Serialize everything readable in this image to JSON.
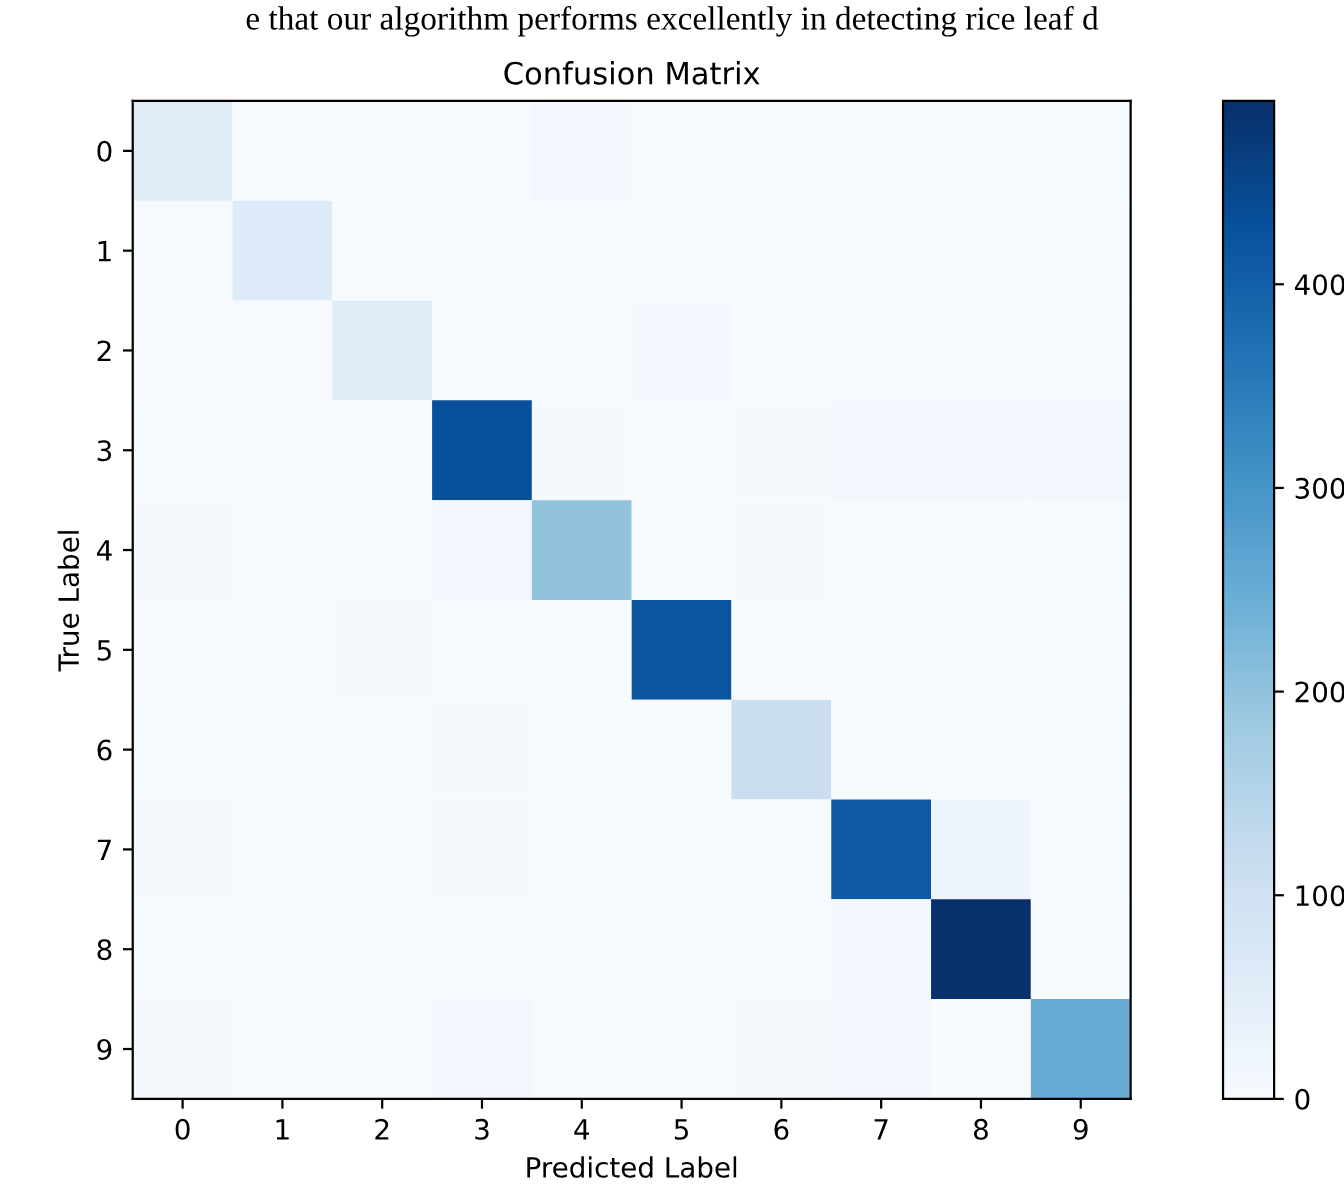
{
  "chart_data": {
    "type": "heatmap",
    "title": "Confusion Matrix",
    "xlabel": "Predicted Label",
    "ylabel": "True Label",
    "annotations": [
      "e that our algorithm performs excellently in detecting rice leaf d"
    ],
    "categories": [
      "0",
      "1",
      "2",
      "3",
      "4",
      "5",
      "6",
      "7",
      "8",
      "9"
    ],
    "y_categories": [
      "0",
      "1",
      "2",
      "3",
      "4",
      "5",
      "6",
      "7",
      "8",
      "9"
    ],
    "cells": [
      [
        60,
        3,
        2,
        5,
        12,
        4,
        3,
        4,
        5,
        4
      ],
      [
        2,
        65,
        2,
        3,
        5,
        3,
        2,
        4,
        2,
        3
      ],
      [
        2,
        2,
        60,
        3,
        3,
        10,
        2,
        3,
        3,
        3
      ],
      [
        4,
        2,
        2,
        430,
        8,
        3,
        6,
        10,
        10,
        12
      ],
      [
        6,
        4,
        3,
        10,
        200,
        3,
        7,
        5,
        5,
        5
      ],
      [
        3,
        3,
        6,
        4,
        3,
        420,
        3,
        4,
        3,
        3
      ],
      [
        4,
        4,
        2,
        7,
        5,
        3,
        110,
        5,
        5,
        4
      ],
      [
        6,
        4,
        2,
        8,
        4,
        3,
        3,
        410,
        25,
        5
      ],
      [
        4,
        4,
        4,
        2,
        4,
        3,
        3,
        10,
        490,
        3
      ],
      [
        8,
        2,
        2,
        10,
        4,
        3,
        6,
        10,
        4,
        250
      ]
    ],
    "clim": [
      0,
      490
    ],
    "cticks": [
      0,
      100,
      200,
      300,
      400
    ]
  }
}
